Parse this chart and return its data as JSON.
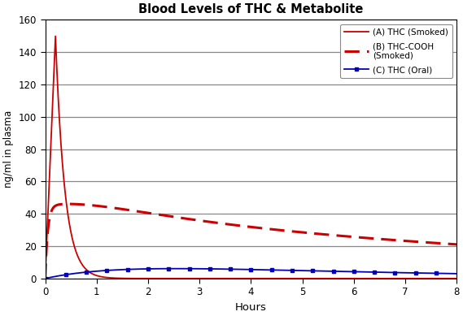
{
  "title": "Blood Levels of THC & Metabolite",
  "xlabel": "Hours",
  "ylabel": "ng/ml in plasma",
  "xlim": [
    0,
    8
  ],
  "ylim": [
    0,
    160
  ],
  "yticks": [
    0,
    20,
    40,
    60,
    80,
    100,
    120,
    140,
    160
  ],
  "xticks": [
    0,
    1,
    2,
    3,
    4,
    5,
    6,
    7,
    8
  ],
  "legend_entries": [
    "(A) THC (Smoked)",
    "(B) THC-COOH\n(Smoked)",
    "(C) THC (Oral)"
  ],
  "background_color": "#ffffff",
  "line_a_color": "#cc0000",
  "line_b_color": "#cc0000",
  "line_c_color": "#0000bb",
  "grid_color": "#888888",
  "figsize": [
    5.69,
    3.89
  ],
  "dpi": 100
}
